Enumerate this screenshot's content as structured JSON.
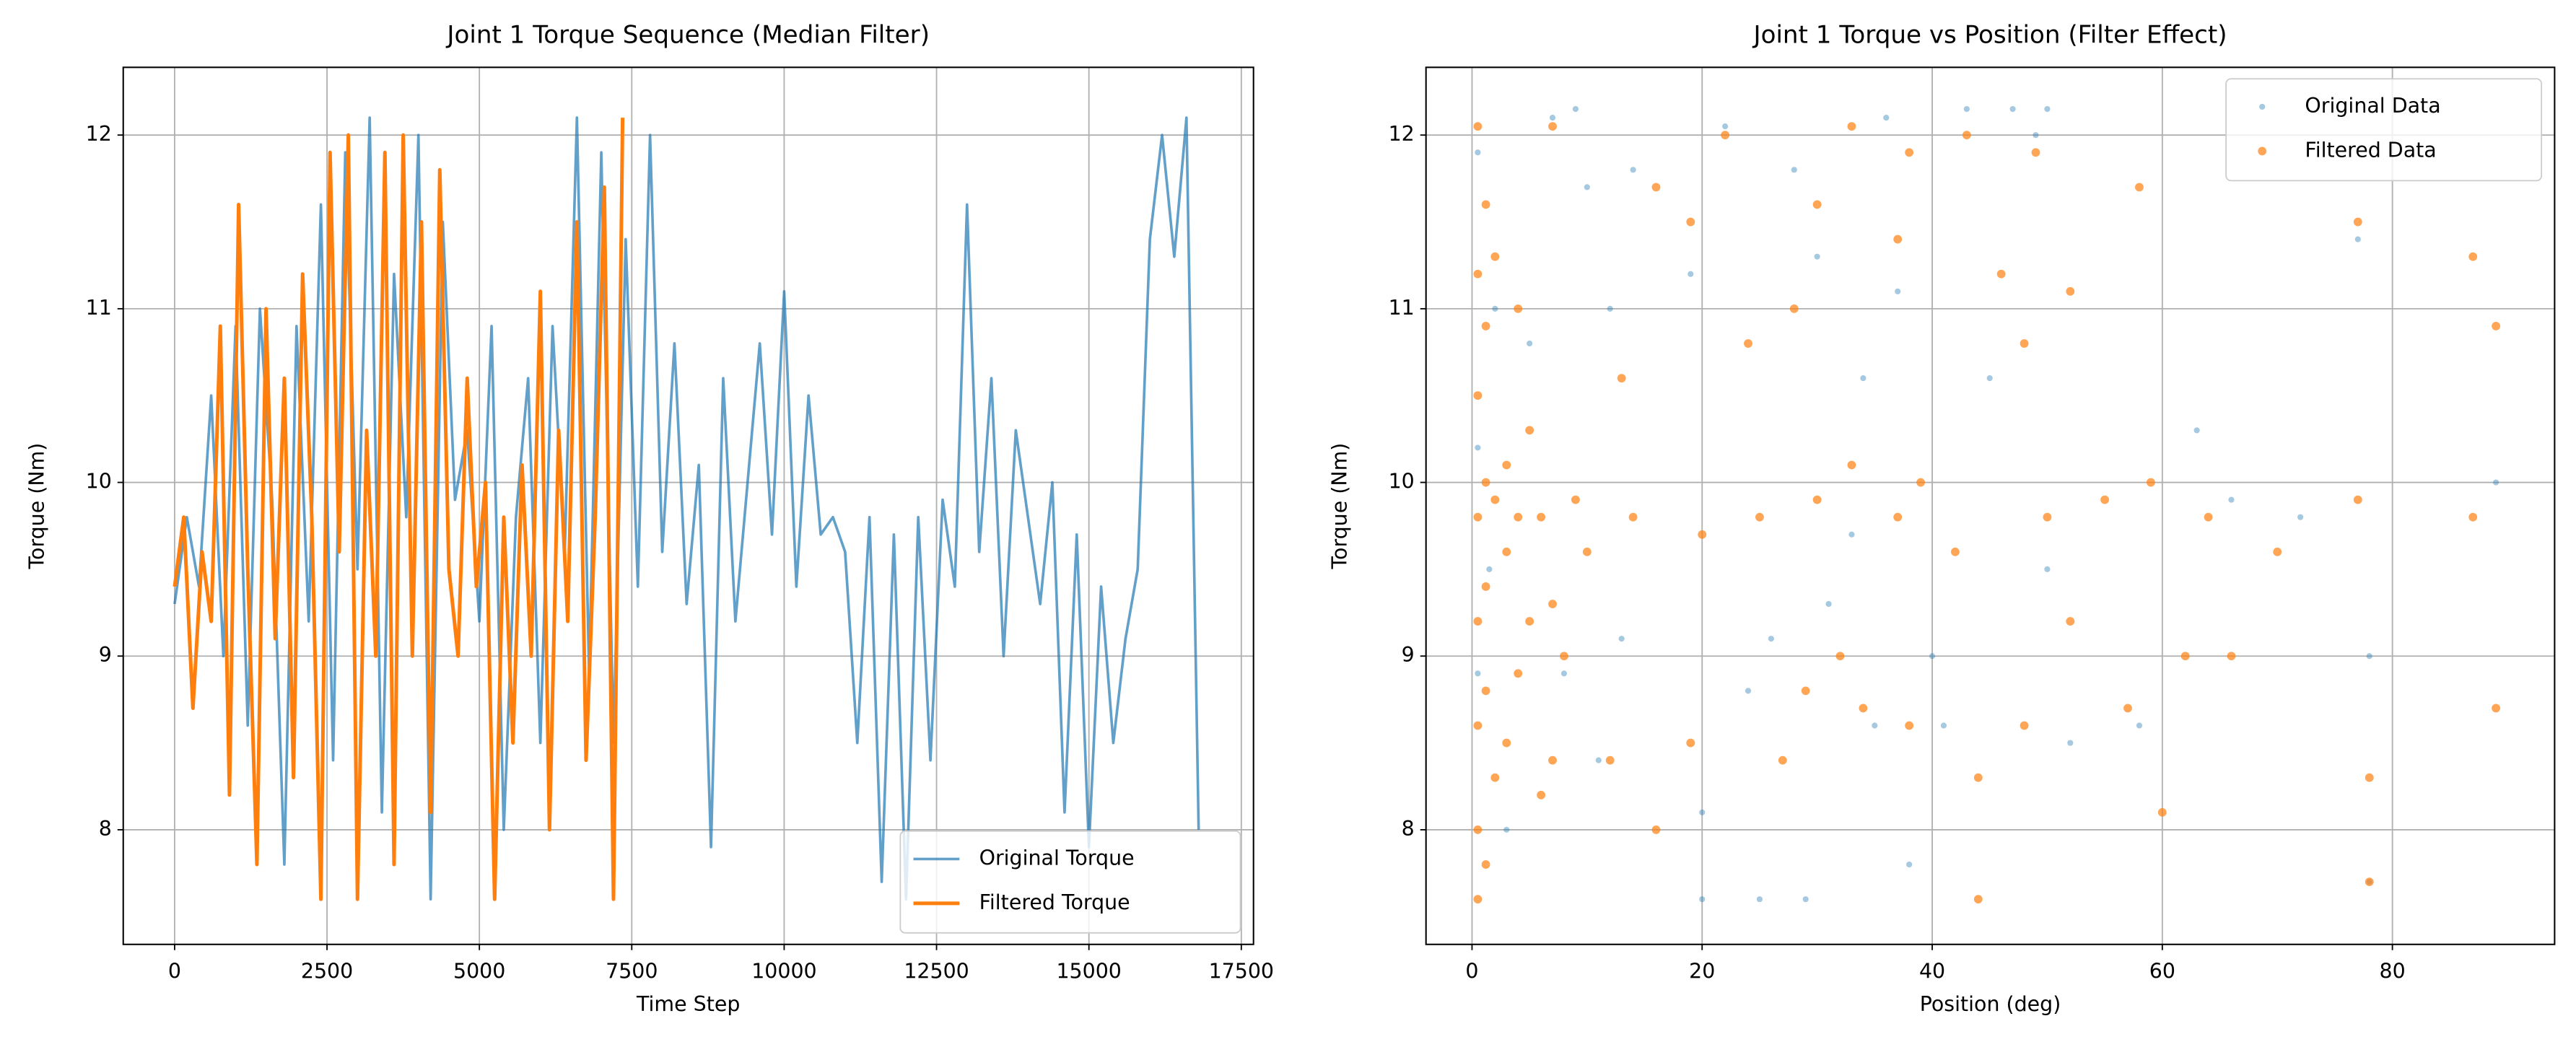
{
  "chart_data": [
    {
      "type": "line",
      "title": "Joint 1 Torque Sequence (Median Filter)",
      "xlabel": "Time Step",
      "ylabel": "Torque (Nm)",
      "xlim": [
        -843,
        17700
      ],
      "ylim": [
        7.34,
        12.39
      ],
      "xticks": [
        0,
        2500,
        5000,
        7500,
        10000,
        12500,
        15000,
        17500
      ],
      "yticks": [
        8,
        9,
        10,
        11,
        12
      ],
      "grid": true,
      "legend": "lower right",
      "series": [
        {
          "name": "Original Torque",
          "color": "#1f77b4",
          "alpha": 0.7,
          "x": [
            0,
            200,
            400,
            600,
            800,
            1000,
            1200,
            1400,
            1600,
            1800,
            2000,
            2200,
            2400,
            2600,
            2800,
            3000,
            3200,
            3400,
            3600,
            3800,
            4000,
            4200,
            4400,
            4600,
            4800,
            5000,
            5200,
            5400,
            5600,
            5800,
            6000,
            6200,
            6400,
            6600,
            6800,
            7000,
            7200,
            7400,
            7600,
            7800,
            8000,
            8200,
            8400,
            8600,
            8800,
            9000,
            9200,
            9400,
            9600,
            9800,
            10000,
            10200,
            10400,
            10600,
            10800,
            11000,
            11200,
            11400,
            11600,
            11800,
            12000,
            12200,
            12400,
            12600,
            12800,
            13000,
            13200,
            13400,
            13600,
            13800,
            14000,
            14200,
            14400,
            14600,
            14800,
            15000,
            15200,
            15400,
            15600,
            15800,
            16000,
            16200,
            16400,
            16600,
            16800
          ],
          "values": [
            9.3,
            9.8,
            9.4,
            10.5,
            9.0,
            10.9,
            8.6,
            11.0,
            9.9,
            7.8,
            10.9,
            9.2,
            11.6,
            8.4,
            11.9,
            9.5,
            12.1,
            8.1,
            11.2,
            9.8,
            12.0,
            7.6,
            11.5,
            9.9,
            10.3,
            9.2,
            10.9,
            8.0,
            9.8,
            10.6,
            8.5,
            10.9,
            9.6,
            12.1,
            8.9,
            11.9,
            8.5,
            11.4,
            9.4,
            12.0,
            9.6,
            10.8,
            9.3,
            10.1,
            7.9,
            10.6,
            9.2,
            10.0,
            10.8,
            9.7,
            11.1,
            9.4,
            10.5,
            9.7,
            9.8,
            9.6,
            8.5,
            9.8,
            7.7,
            9.7,
            7.6,
            9.8,
            8.4,
            9.9,
            9.4,
            11.6,
            9.6,
            10.6,
            9.0,
            10.3,
            9.8,
            9.3,
            10.0,
            8.1,
            9.7,
            7.9,
            9.4,
            8.5,
            9.1,
            9.5,
            11.4,
            12.0,
            11.3,
            12.1,
            8.0
          ]
        },
        {
          "name": "Filtered Torque",
          "color": "#ff7f0e",
          "alpha": 1,
          "x": [
            0,
            150,
            300,
            450,
            600,
            750,
            900,
            1050,
            1200,
            1350,
            1500,
            1650,
            1800,
            1950,
            2100,
            2250,
            2400,
            2550,
            2700,
            2850,
            3000,
            3150,
            3300,
            3450,
            3600,
            3750,
            3900,
            4050,
            4200,
            4350,
            4500,
            4650,
            4800,
            4950,
            5100,
            5250,
            5400,
            5550,
            5700,
            5850,
            6000,
            6150,
            6300,
            6450,
            6600,
            6750,
            6900,
            7050,
            7200,
            7350
          ],
          "values": [
            9.4,
            9.8,
            8.7,
            9.6,
            9.2,
            10.9,
            8.2,
            11.6,
            9.5,
            7.8,
            11.0,
            9.1,
            10.6,
            8.3,
            11.2,
            9.8,
            7.6,
            11.9,
            9.6,
            12.0,
            7.6,
            10.3,
            9.0,
            11.9,
            7.8,
            12.0,
            9.0,
            11.5,
            8.1,
            11.8,
            9.5,
            9.0,
            10.6,
            9.4,
            10.0,
            7.6,
            9.8,
            8.5,
            10.1,
            9.0,
            11.1,
            8.0,
            10.3,
            9.2,
            11.5,
            8.4,
            9.8,
            11.7,
            7.6,
            12.1
          ]
        }
      ]
    },
    {
      "type": "scatter",
      "title": "Joint 1 Torque vs Position (Filter Effect)",
      "xlabel": "Position (deg)",
      "ylabel": "Torque (Nm)",
      "xlim": [
        -4,
        94.1
      ],
      "ylim": [
        7.34,
        12.39
      ],
      "xticks": [
        0,
        20,
        40,
        60,
        80
      ],
      "yticks": [
        8,
        9,
        10,
        11,
        12
      ],
      "grid": true,
      "legend": "upper right",
      "series": [
        {
          "name": "Original Data",
          "color": "#1f77b4",
          "alpha": 0.4,
          "x": [
            0.5,
            0.5,
            0.5,
            1.5,
            2,
            3,
            5,
            7,
            8,
            9,
            10,
            11,
            12,
            13,
            14,
            19,
            20,
            20,
            22,
            24,
            25,
            26,
            28,
            29,
            30,
            31,
            33,
            34,
            35,
            36,
            37,
            38,
            40,
            41,
            43,
            45,
            47,
            49,
            50,
            50,
            52,
            58,
            63,
            66,
            72,
            77,
            78,
            78,
            89
          ],
          "values": [
            11.9,
            10.2,
            8.9,
            9.5,
            11.0,
            8.0,
            10.8,
            12.1,
            8.9,
            12.15,
            11.7,
            8.4,
            11.0,
            9.1,
            11.8,
            11.2,
            8.1,
            7.6,
            12.05,
            8.8,
            7.6,
            9.1,
            11.8,
            7.6,
            11.3,
            9.3,
            9.7,
            10.6,
            8.6,
            12.1,
            11.1,
            7.8,
            9.0,
            8.6,
            12.15,
            10.6,
            12.15,
            12.0,
            12.15,
            9.5,
            8.5,
            8.6,
            10.3,
            9.9,
            9.8,
            11.4,
            7.7,
            9.0,
            10.0
          ]
        },
        {
          "name": "Filtered Data",
          "color": "#ff7f0e",
          "alpha": 0.7,
          "x": [
            0.5,
            0.5,
            0.5,
            0.5,
            0.5,
            0.5,
            0.5,
            0.5,
            1.2,
            1.2,
            1.2,
            1.2,
            1.2,
            1.2,
            2,
            2,
            2,
            3,
            3,
            3,
            4,
            4,
            4,
            5,
            5,
            6,
            6,
            7,
            7,
            7,
            8,
            9,
            10,
            12,
            13,
            14,
            16,
            16,
            19,
            19,
            20,
            22,
            24,
            25,
            27,
            28,
            29,
            30,
            30,
            32,
            33,
            33,
            34,
            37,
            37,
            38,
            38,
            39,
            42,
            43,
            44,
            44,
            46,
            48,
            48,
            49,
            50,
            52,
            52,
            55,
            57,
            58,
            59,
            60,
            62,
            64,
            66,
            70,
            77,
            77,
            78,
            78,
            87,
            87,
            89,
            89
          ],
          "values": [
            12.05,
            11.2,
            10.5,
            9.8,
            9.2,
            8.6,
            8.0,
            7.6,
            11.6,
            10.9,
            10.0,
            9.4,
            8.8,
            7.8,
            11.3,
            9.9,
            8.3,
            10.1,
            9.6,
            8.5,
            11.0,
            9.8,
            8.9,
            10.3,
            9.2,
            9.8,
            8.2,
            12.05,
            9.3,
            8.4,
            9.0,
            9.9,
            9.6,
            8.4,
            10.6,
            9.8,
            11.7,
            8.0,
            11.5,
            8.5,
            9.7,
            12.0,
            10.8,
            9.8,
            8.4,
            11.0,
            8.8,
            11.6,
            9.9,
            9.0,
            12.05,
            10.1,
            8.7,
            11.4,
            9.8,
            8.6,
            11.9,
            10.0,
            9.6,
            12.0,
            8.3,
            7.6,
            11.2,
            10.8,
            8.6,
            11.9,
            9.8,
            11.1,
            9.2,
            9.9,
            8.7,
            11.7,
            10.0,
            8.1,
            9.0,
            9.8,
            9.0,
            9.6,
            11.5,
            9.9,
            8.3,
            7.7,
            11.3,
            9.8,
            10.9,
            8.7
          ]
        }
      ]
    }
  ]
}
